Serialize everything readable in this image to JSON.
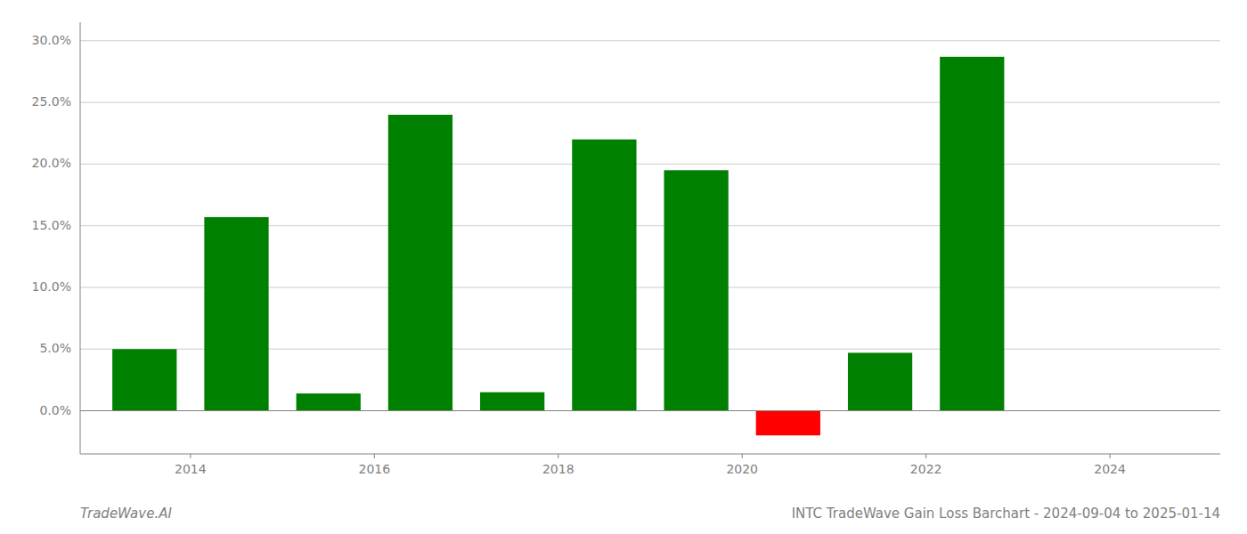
{
  "chart_data": {
    "type": "bar",
    "title": "INTC TradeWave Gain Loss Barchart - 2024-09-04 to 2025-01-14",
    "annotations": [
      "TradeWave.AI"
    ],
    "x": [
      2013.5,
      2014.5,
      2015.5,
      2016.5,
      2017.5,
      2018.5,
      2019.5,
      2020.5,
      2021.5,
      2022.5
    ],
    "values": [
      0.05,
      0.157,
      0.014,
      0.24,
      0.015,
      0.22,
      0.195,
      -0.02,
      0.047,
      0.287
    ],
    "colors": [
      "#008000",
      "#008000",
      "#008000",
      "#008000",
      "#008000",
      "#008000",
      "#008000",
      "#ff0000",
      "#008000",
      "#008000"
    ],
    "xlim": [
      2012.8,
      2025.2
    ],
    "xticks": [
      2014,
      2016,
      2018,
      2020,
      2022,
      2024
    ],
    "ylim": [
      -0.035,
      0.315
    ],
    "yticks": [
      {
        "value": 0.0,
        "label": "0.0%"
      },
      {
        "value": 0.05,
        "label": "5.0%"
      },
      {
        "value": 0.1,
        "label": "10.0%"
      },
      {
        "value": 0.15,
        "label": "15.0%"
      },
      {
        "value": 0.2,
        "label": "20.0%"
      },
      {
        "value": 0.25,
        "label": "25.0%"
      },
      {
        "value": 0.3,
        "label": "30.0%"
      }
    ],
    "grid": true
  }
}
